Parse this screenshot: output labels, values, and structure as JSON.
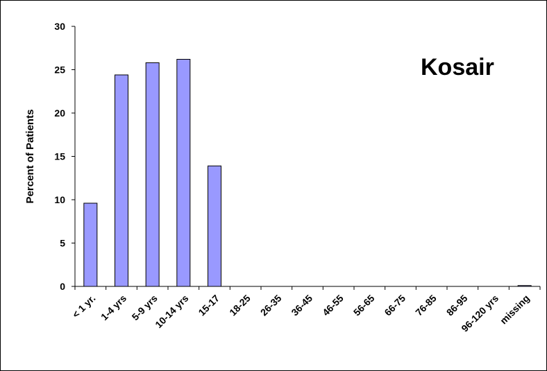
{
  "chart_data": {
    "type": "bar",
    "title": "",
    "annotation": "Kosair",
    "xlabel": "",
    "ylabel": "Percent of Patients",
    "ylim": [
      0,
      30
    ],
    "yticks": [
      0,
      5,
      10,
      15,
      20,
      25,
      30
    ],
    "grid": false,
    "legend": "none",
    "categories": [
      "< 1 yr.",
      "1-4 yrs",
      "5-9 yrs",
      "10-14 yrs",
      "15-17",
      "18-25",
      "26-35",
      "36-45",
      "46-55",
      "56-65",
      "66-75",
      "76-85",
      "86-95",
      "96-120 yrs",
      "missing"
    ],
    "values": [
      9.6,
      24.4,
      25.8,
      26.2,
      13.9,
      0,
      0,
      0,
      0,
      0,
      0,
      0,
      0,
      0,
      0.1
    ],
    "bar_color": "#9999ff",
    "bar_edge_color": "#000000"
  }
}
